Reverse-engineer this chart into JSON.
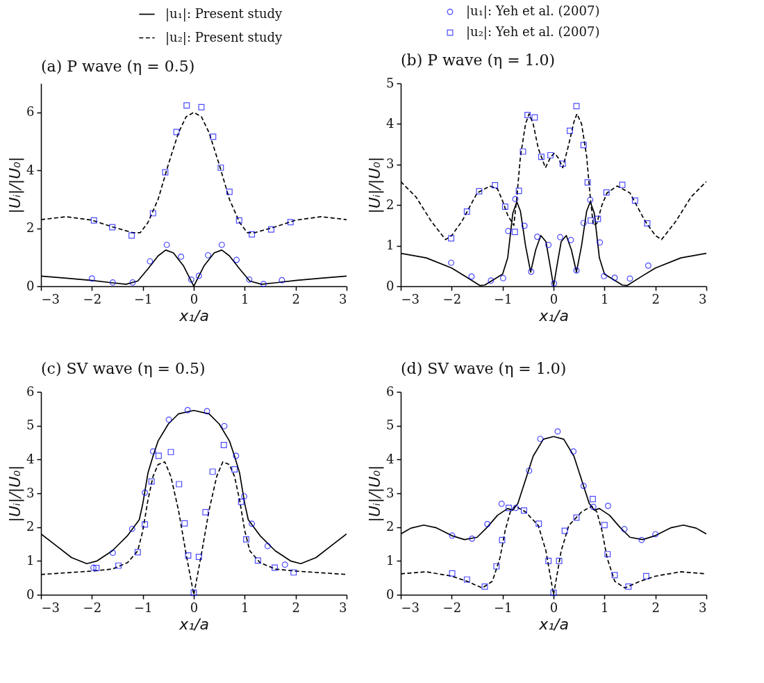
{
  "chart_data": [
    {
      "type": "line",
      "title": "(a) P wave (η = 0.5)",
      "xlabel": "x₁/a",
      "ylabel": "|Uᵢ|/|U₀|",
      "xlim": [
        -3,
        3
      ],
      "xticks": [
        -3,
        -2,
        -1,
        0,
        1,
        2,
        3
      ],
      "ylim": [
        0,
        7
      ],
      "yticks": [
        0,
        2,
        4,
        6
      ],
      "legend": "top",
      "series": [
        {
          "name": "|u₁|: Present study",
          "type": "line",
          "color": "#000000",
          "line_style": "solid",
          "x": [
            -3,
            -2.5,
            -2,
            -1.6,
            -1.33,
            -1.1,
            -0.9,
            -0.7,
            -0.55,
            -0.4,
            -0.2,
            -0.1,
            0,
            0.1,
            0.2,
            0.4,
            0.55,
            0.7,
            0.9,
            1.1,
            1.33,
            1.6,
            2,
            2.5,
            3
          ],
          "values": [
            0.35,
            0.28,
            0.2,
            0.12,
            0.07,
            0.18,
            0.6,
            1.05,
            1.25,
            1.15,
            0.7,
            0.35,
            0,
            0.35,
            0.7,
            1.15,
            1.25,
            1.05,
            0.6,
            0.18,
            0.07,
            0.12,
            0.2,
            0.28,
            0.35
          ]
        },
        {
          "name": "|u₂|: Present study",
          "type": "line",
          "color": "#000000",
          "line_style": "dashed",
          "x": [
            -3,
            -2.5,
            -2,
            -1.6,
            -1.2,
            -1.05,
            -0.9,
            -0.7,
            -0.5,
            -0.3,
            -0.15,
            0,
            0.15,
            0.3,
            0.5,
            0.7,
            0.9,
            1.05,
            1.2,
            1.6,
            2,
            2.5,
            3
          ],
          "values": [
            2.3,
            2.4,
            2.28,
            2.05,
            1.85,
            1.85,
            2.2,
            3.0,
            4.2,
            5.3,
            5.85,
            6.0,
            5.85,
            5.3,
            4.2,
            3.0,
            2.2,
            1.85,
            1.85,
            2.05,
            2.28,
            2.4,
            2.3
          ]
        },
        {
          "name": "|u₁|: Yeh et al. (2007)",
          "type": "scatter",
          "color": "#0000ff",
          "marker": "circle",
          "x": [
            -2.0,
            -1.59,
            -1.2,
            -0.86,
            -0.53,
            -0.25,
            -0.05,
            0.1,
            0.28,
            0.55,
            0.84,
            1.09,
            1.37,
            1.73
          ],
          "values": [
            0.27,
            0.13,
            0.13,
            0.86,
            1.43,
            1.02,
            0.23,
            0.36,
            1.07,
            1.43,
            0.91,
            0.23,
            0.08,
            0.21
          ]
        },
        {
          "name": "|u₂|: Yeh et al. (2007)",
          "type": "scatter",
          "color": "#0000ff",
          "marker": "square",
          "x": [
            -1.96,
            -1.6,
            -1.22,
            -0.8,
            -0.56,
            -0.34,
            -0.14,
            0.15,
            0.38,
            0.53,
            0.7,
            0.89,
            1.14,
            1.52,
            1.9
          ],
          "values": [
            2.27,
            2.04,
            1.75,
            2.52,
            3.93,
            5.32,
            6.24,
            6.18,
            5.16,
            4.09,
            3.26,
            2.27,
            1.79,
            1.96,
            2.21
          ]
        }
      ]
    },
    {
      "type": "line",
      "title": "(b) P wave (η = 1.0)",
      "xlabel": "x₁/a",
      "ylabel": "|Uᵢ|/|U₀|",
      "xlim": [
        -3,
        3
      ],
      "xticks": [
        -3,
        -2,
        -1,
        0,
        1,
        2,
        3
      ],
      "ylim": [
        0,
        5
      ],
      "yticks": [
        0,
        1,
        2,
        3,
        4,
        5
      ],
      "series": [
        {
          "type": "line",
          "color": "#000000",
          "line_style": "solid",
          "x": [
            -3,
            -2.5,
            -2,
            -1.7,
            -1.45,
            -1.35,
            -1,
            -0.9,
            -0.8,
            -0.72,
            -0.65,
            -0.55,
            -0.45,
            -0.35,
            -0.25,
            -0.15,
            -0.08,
            0,
            0.08,
            0.15,
            0.25,
            0.35,
            0.45,
            0.55,
            0.65,
            0.72,
            0.8,
            0.9,
            1,
            1.35,
            1.45,
            1.7,
            2,
            2.5,
            3
          ],
          "values": [
            0.81,
            0.7,
            0.45,
            0.22,
            0.02,
            0.03,
            0.3,
            0.7,
            1.8,
            2.08,
            1.85,
            1.0,
            0.35,
            0.9,
            1.25,
            1.1,
            0.6,
            0,
            0.6,
            1.1,
            1.25,
            0.9,
            0.35,
            1.0,
            1.85,
            2.08,
            1.8,
            0.7,
            0.3,
            0.03,
            0.02,
            0.22,
            0.45,
            0.7,
            0.81
          ]
        },
        {
          "type": "line",
          "color": "#000000",
          "line_style": "dashed",
          "x": [
            -3,
            -2.7,
            -2.4,
            -2.12,
            -2,
            -1.8,
            -1.5,
            -1.25,
            -1.1,
            -1,
            -0.9,
            -0.78,
            -0.72,
            -0.65,
            -0.55,
            -0.48,
            -0.4,
            -0.3,
            -0.16,
            -0.05,
            0.02,
            0.1,
            0.18,
            0.3,
            0.4,
            0.46,
            0.55,
            0.65,
            0.72,
            0.78,
            0.85,
            0.95,
            1.05,
            1.25,
            1.5,
            1.8,
            2,
            2.12,
            2.4,
            2.7,
            3
          ],
          "values": [
            2.58,
            2.2,
            1.6,
            1.15,
            1.25,
            1.6,
            2.3,
            2.47,
            2.4,
            2.1,
            1.75,
            1.5,
            2.2,
            3.2,
            4.0,
            4.25,
            4.0,
            3.4,
            2.92,
            3.2,
            3.28,
            3.15,
            2.92,
            3.5,
            4.05,
            4.25,
            4.0,
            3.2,
            2.2,
            1.5,
            1.55,
            2.0,
            2.3,
            2.47,
            2.3,
            1.6,
            1.25,
            1.15,
            1.6,
            2.2,
            2.58
          ]
        },
        {
          "type": "scatter",
          "color": "#0000ff",
          "marker": "circle",
          "x": [
            -2.01,
            -1.61,
            -1.23,
            -0.99,
            -0.89,
            -0.75,
            -0.57,
            -0.44,
            -0.32,
            -0.1,
            0.01,
            0.13,
            0.34,
            0.45,
            0.59,
            0.72,
            0.91,
            0.99,
            1.2,
            1.5,
            1.86
          ],
          "values": [
            0.58,
            0.24,
            0.14,
            0.2,
            1.36,
            2.15,
            1.49,
            0.36,
            1.22,
            1.02,
            0.07,
            1.21,
            1.14,
            0.39,
            1.56,
            2.13,
            1.08,
            0.25,
            0.21,
            0.19,
            0.51
          ]
        },
        {
          "type": "scatter",
          "color": "#0000ff",
          "marker": "square",
          "x": [
            -2.01,
            -1.7,
            -1.46,
            -1.15,
            -0.95,
            -0.76,
            -0.68,
            -0.6,
            -0.51,
            -0.37,
            -0.24,
            -0.06,
            0.18,
            0.32,
            0.45,
            0.59,
            0.67,
            0.73,
            0.87,
            1.04,
            1.35,
            1.6,
            1.84
          ],
          "values": [
            1.18,
            1.84,
            2.34,
            2.49,
            1.96,
            1.34,
            2.35,
            3.32,
            4.22,
            4.16,
            3.19,
            3.23,
            3.02,
            3.83,
            4.44,
            3.48,
            2.56,
            1.62,
            1.66,
            2.31,
            2.5,
            2.11,
            1.55
          ]
        }
      ]
    },
    {
      "type": "line",
      "title": "(c) SV wave (η = 0.5)",
      "xlabel": "x₁/a",
      "ylabel": "|Uᵢ|/|U₀|",
      "xlim": [
        -3,
        3
      ],
      "xticks": [
        -3,
        -2,
        -1,
        0,
        1,
        2,
        3
      ],
      "ylim": [
        0,
        6
      ],
      "yticks": [
        0,
        1,
        2,
        3,
        4,
        5,
        6
      ],
      "series": [
        {
          "type": "line",
          "color": "#000000",
          "line_style": "solid",
          "x": [
            -3,
            -2.7,
            -2.4,
            -2.1,
            -1.9,
            -1.6,
            -1.3,
            -1.07,
            -1,
            -0.9,
            -0.8,
            -0.7,
            -0.5,
            -0.3,
            0,
            0.3,
            0.5,
            0.7,
            0.8,
            0.9,
            1,
            1.07,
            1.3,
            1.6,
            1.9,
            2.1,
            2.4,
            2.7,
            3
          ],
          "values": [
            1.8,
            1.45,
            1.1,
            0.92,
            1.0,
            1.3,
            1.75,
            2.22,
            2.7,
            3.6,
            4.1,
            4.55,
            5.05,
            5.35,
            5.45,
            5.35,
            5.05,
            4.55,
            4.1,
            3.6,
            2.7,
            2.22,
            1.75,
            1.3,
            1.0,
            0.92,
            1.1,
            1.45,
            1.8
          ]
        },
        {
          "type": "line",
          "color": "#000000",
          "line_style": "dashed",
          "x": [
            -3,
            -2,
            -1.6,
            -1.3,
            -1.1,
            -1,
            -0.9,
            -0.8,
            -0.7,
            -0.57,
            -0.45,
            -0.3,
            -0.15,
            0,
            0.15,
            0.3,
            0.45,
            0.57,
            0.7,
            0.8,
            0.9,
            1,
            1.1,
            1.3,
            1.6,
            2,
            3
          ],
          "values": [
            0.6,
            0.7,
            0.76,
            0.95,
            1.3,
            1.9,
            2.8,
            3.5,
            3.85,
            3.93,
            3.5,
            2.5,
            1.2,
            0,
            1.2,
            2.5,
            3.5,
            3.93,
            3.85,
            3.5,
            2.8,
            1.9,
            1.3,
            0.95,
            0.76,
            0.7,
            0.6
          ]
        },
        {
          "type": "scatter",
          "color": "#0000ff",
          "marker": "circle",
          "x": [
            -1.97,
            -1.59,
            -1.21,
            -0.96,
            -0.8,
            -0.49,
            -0.12,
            0.26,
            0.6,
            0.83,
            0.99,
            1.14,
            1.45,
            1.79
          ],
          "values": [
            0.8,
            1.24,
            1.95,
            3.02,
            4.24,
            5.18,
            5.46,
            5.43,
            4.99,
            4.11,
            2.91,
            2.1,
            1.44,
            0.89
          ]
        },
        {
          "type": "scatter",
          "color": "#0000ff",
          "marker": "square",
          "x": [
            -1.91,
            -1.48,
            -1.1,
            -0.96,
            -0.83,
            -0.69,
            -0.45,
            -0.29,
            -0.18,
            -0.11,
            0.0,
            0.1,
            0.23,
            0.37,
            0.59,
            0.8,
            0.93,
            1.03,
            1.26,
            1.59,
            1.96
          ],
          "values": [
            0.79,
            0.86,
            1.26,
            2.08,
            3.35,
            4.11,
            4.22,
            3.27,
            2.11,
            1.16,
            0.06,
            1.12,
            2.44,
            3.64,
            4.43,
            3.71,
            2.75,
            1.64,
            1.01,
            0.8,
            0.66
          ]
        }
      ]
    },
    {
      "type": "line",
      "title": "(d) SV wave (η = 1.0)",
      "xlabel": "x₁/a",
      "ylabel": "|Uᵢ|/|U₀|",
      "xlim": [
        -3,
        3
      ],
      "xticks": [
        -3,
        -2,
        -1,
        0,
        1,
        2,
        3
      ],
      "ylim": [
        0,
        6
      ],
      "yticks": [
        0,
        1,
        2,
        3,
        4,
        5,
        6
      ],
      "series": [
        {
          "type": "line",
          "color": "#000000",
          "line_style": "solid",
          "x": [
            -3,
            -2.8,
            -2.55,
            -2.3,
            -2,
            -1.75,
            -1.5,
            -1.3,
            -1.1,
            -0.9,
            -0.8,
            -0.7,
            -0.55,
            -0.4,
            -0.2,
            0,
            0.2,
            0.4,
            0.55,
            0.7,
            0.8,
            0.9,
            1.1,
            1.3,
            1.5,
            1.75,
            2,
            2.3,
            2.55,
            2.8,
            3
          ],
          "values": [
            1.8,
            1.97,
            2.06,
            1.98,
            1.75,
            1.63,
            1.7,
            2.0,
            2.35,
            2.55,
            2.5,
            2.7,
            3.4,
            4.1,
            4.6,
            4.68,
            4.6,
            4.1,
            3.4,
            2.7,
            2.5,
            2.55,
            2.35,
            2.0,
            1.7,
            1.63,
            1.75,
            1.98,
            2.06,
            1.97,
            1.8
          ]
        },
        {
          "type": "line",
          "color": "#000000",
          "line_style": "dashed",
          "x": [
            -3,
            -2.5,
            -2,
            -1.7,
            -1.4,
            -1.2,
            -1.05,
            -0.95,
            -0.85,
            -0.75,
            -0.55,
            -0.3,
            -0.15,
            0,
            0.15,
            0.3,
            0.55,
            0.75,
            0.85,
            0.95,
            1.05,
            1.2,
            1.4,
            1.7,
            2,
            2.5,
            3
          ],
          "values": [
            0.62,
            0.68,
            0.55,
            0.4,
            0.2,
            0.4,
            1.1,
            1.9,
            2.45,
            2.62,
            2.45,
            2.05,
            1.3,
            0,
            1.3,
            2.05,
            2.45,
            2.62,
            2.45,
            1.9,
            1.1,
            0.4,
            0.2,
            0.4,
            0.55,
            0.68,
            0.62
          ]
        },
        {
          "type": "scatter",
          "color": "#0000ff",
          "marker": "circle",
          "x": [
            -1.99,
            -1.6,
            -1.3,
            -1.02,
            -0.74,
            -0.48,
            -0.26,
            0.08,
            0.39,
            0.59,
            0.78,
            1.07,
            1.39,
            1.73,
            2.0
          ],
          "values": [
            1.75,
            1.66,
            2.09,
            2.69,
            2.57,
            3.67,
            4.61,
            4.83,
            4.24,
            3.22,
            2.6,
            2.63,
            1.94,
            1.62,
            1.79
          ]
        },
        {
          "type": "scatter",
          "color": "#0000ff",
          "marker": "square",
          "x": [
            -1.99,
            -1.7,
            -1.35,
            -1.12,
            -1.01,
            -0.88,
            -0.58,
            -0.29,
            -0.1,
            0.0,
            0.11,
            0.22,
            0.45,
            0.77,
            1.0,
            1.06,
            1.2,
            1.47,
            1.82
          ],
          "values": [
            0.63,
            0.45,
            0.24,
            0.84,
            1.62,
            2.57,
            2.49,
            2.1,
            1.0,
            0.06,
            1.0,
            1.89,
            2.28,
            2.83,
            2.06,
            1.2,
            0.58,
            0.24,
            0.55
          ]
        }
      ]
    }
  ]
}
